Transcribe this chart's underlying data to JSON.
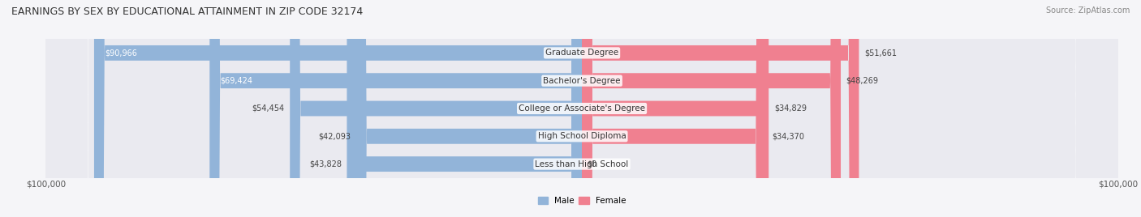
{
  "title": "EARNINGS BY SEX BY EDUCATIONAL ATTAINMENT IN ZIP CODE 32174",
  "source": "Source: ZipAtlas.com",
  "categories": [
    "Less than High School",
    "High School Diploma",
    "College or Associate's Degree",
    "Bachelor's Degree",
    "Graduate Degree"
  ],
  "male_values": [
    43828,
    42093,
    54454,
    69424,
    90966
  ],
  "female_values": [
    0,
    34370,
    34829,
    48269,
    51661
  ],
  "max_value": 100000,
  "male_color": "#92B4D9",
  "female_color": "#F08090",
  "bar_bg_color": "#E8E8EE",
  "row_bg_color": "#F0F0F5",
  "label_color": "#555555",
  "title_color": "#333333",
  "bar_height": 0.55,
  "figsize": [
    14.06,
    2.68
  ],
  "dpi": 100
}
